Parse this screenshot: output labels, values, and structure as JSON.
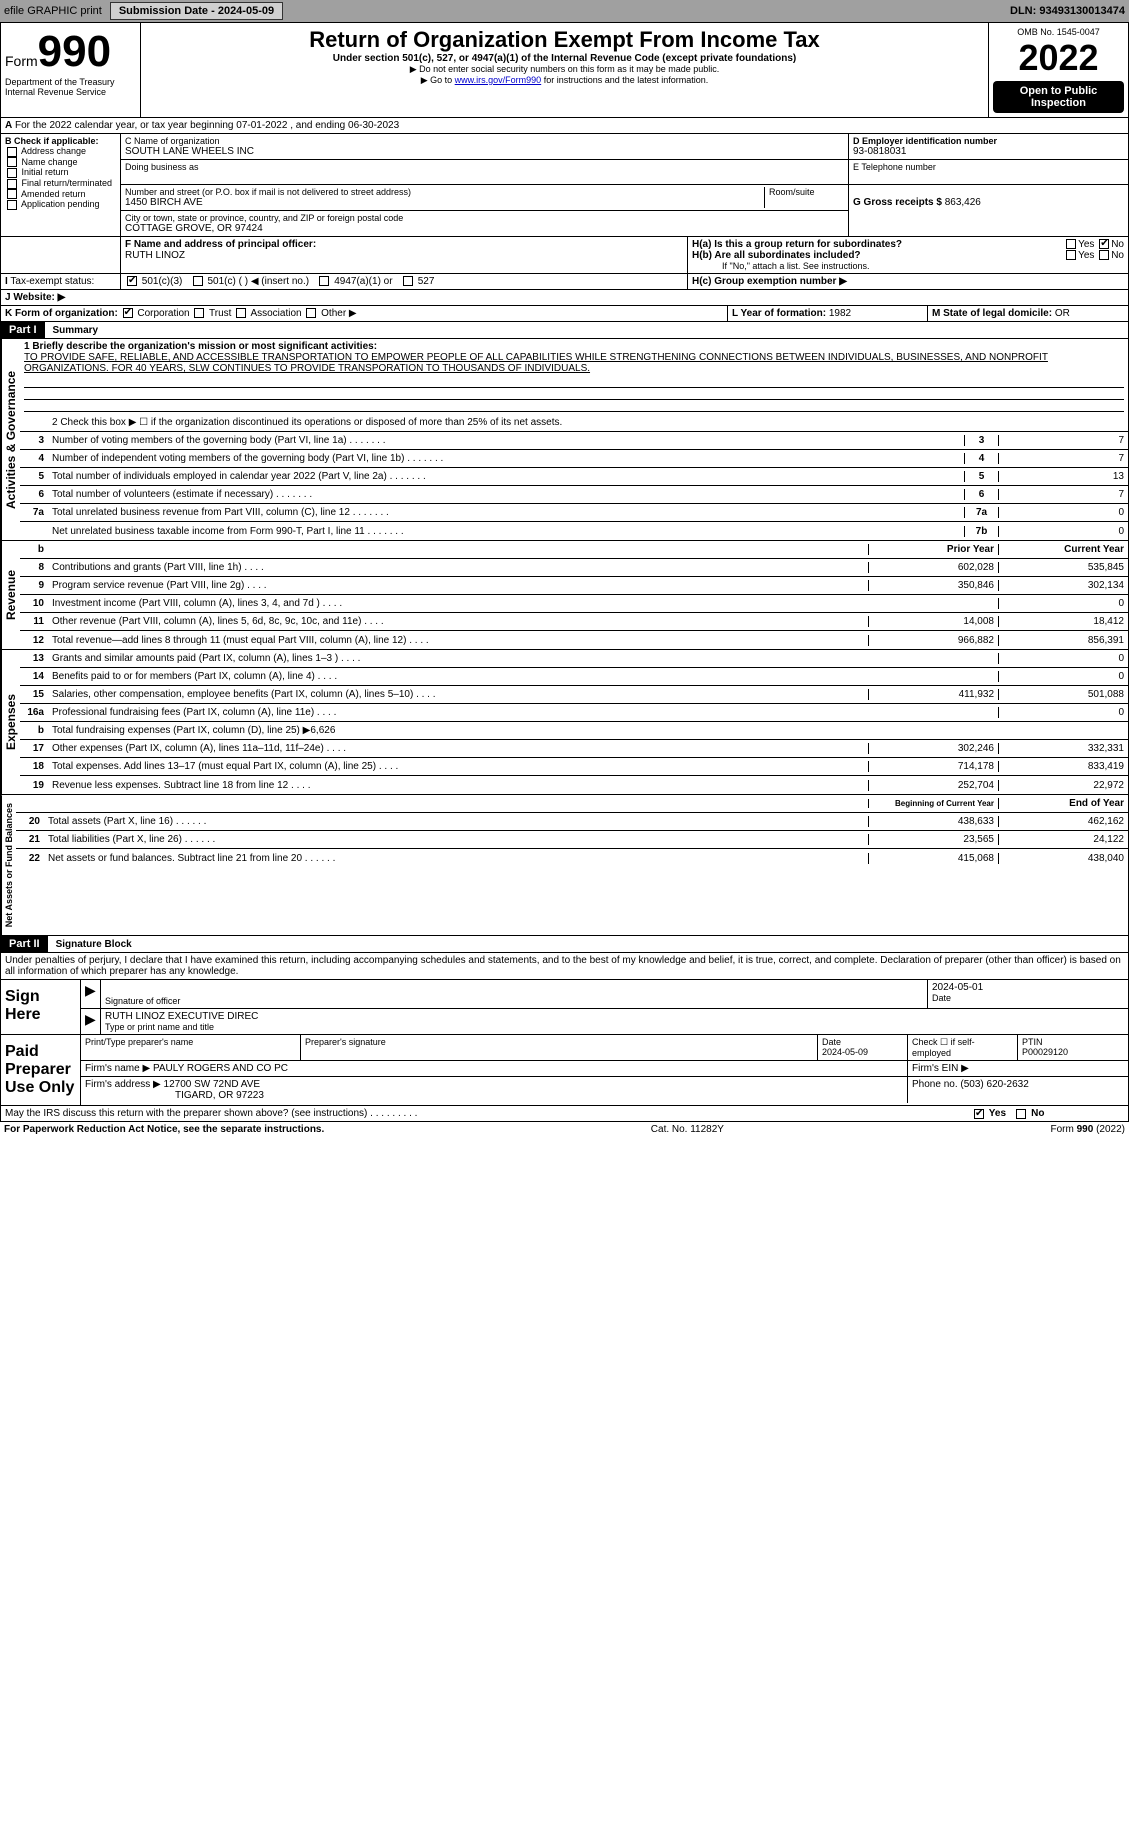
{
  "meta": {
    "efile": "efile GRAPHIC print",
    "submission": "Submission Date - 2024-05-09",
    "dln": "DLN: 93493130013474",
    "omb": "OMB No. 1545-0047",
    "form_prefix": "Form",
    "form_no": "990",
    "title": "Return of Organization Exempt From Income Tax",
    "subtitle": "Under section 501(c), 527, or 4947(a)(1) of the Internal Revenue Code (except private foundations)",
    "note1": "▶ Do not enter social security numbers on this form as it may be made public.",
    "note2_pre": "▶ Go to ",
    "note2_link": "www.irs.gov/Form990",
    "note2_post": " for instructions and the latest information.",
    "dept": "Department of the Treasury",
    "irs": "Internal Revenue Service",
    "year": "2022",
    "inspect": "Open to Public Inspection"
  },
  "lineA": "For the 2022 calendar year, or tax year beginning 07-01-2022    , and ending 06-30-2023",
  "boxB": {
    "hdr": "B Check if applicable:",
    "items": [
      "Address change",
      "Name change",
      "Initial return",
      "Final return/terminated",
      "Amended return",
      "Application pending"
    ]
  },
  "boxC": {
    "label": "C Name of organization",
    "name": "SOUTH LANE WHEELS INC",
    "dba": "Doing business as",
    "addr_label": "Number and street (or P.O. box if mail is not delivered to street address)",
    "room": "Room/suite",
    "addr": "1450 BIRCH AVE",
    "city_label": "City or town, state or province, country, and ZIP or foreign postal code",
    "city": "COTTAGE GROVE, OR  97424"
  },
  "boxD": {
    "label": "D Employer identification number",
    "val": "93-0818031"
  },
  "boxE": {
    "label": "E Telephone number",
    "val": ""
  },
  "boxG": {
    "label": "G Gross receipts $",
    "val": "863,426"
  },
  "boxF": {
    "label": "F  Name and address of principal officer:",
    "val": "RUTH LINOZ"
  },
  "boxH": {
    "a": "H(a)  Is this a group return for subordinates?",
    "b": "H(b)  Are all subordinates included?",
    "b_note": "If \"No,\" attach a list. See instructions.",
    "c": "H(c)  Group exemption number ▶",
    "yes": "Yes",
    "no": "No"
  },
  "taxExempt": {
    "label": "Tax-exempt status:",
    "c3": "501(c)(3)",
    "c": "501(c) (   ) ◀ (insert no.)",
    "a": "4947(a)(1) or",
    "s": "527"
  },
  "website": {
    "label": "J    Website: ▶",
    "val": ""
  },
  "formOrg": {
    "label": "K Form of organization:",
    "corp": "Corporation",
    "trust": "Trust",
    "assoc": "Association",
    "other": "Other ▶"
  },
  "yearForm": {
    "label": "L Year of formation:",
    "val": "1982"
  },
  "stateDom": {
    "label": "M State of legal domicile:",
    "val": "OR"
  },
  "part1": {
    "hdr": "Part I",
    "title": "Summary",
    "vlabels": [
      "Activities & Governance",
      "Revenue",
      "Expenses",
      "Net Assets or Fund Balances"
    ],
    "l1_label": "1  Briefly describe the organization's mission or most significant activities:",
    "l1_text": "TO PROVIDE SAFE, RELIABLE, AND ACCESSIBLE TRANSPORTATION TO EMPOWER PEOPLE OF ALL CAPABILITIES WHILE STRENGTHENING CONNECTIONS BETWEEN INDIVIDUALS, BUSINESSES, AND NONPROFIT ORGANIZATIONS. FOR 40 YEARS, SLW CONTINUES TO PROVIDE TRANSPORATION TO THOUSANDS OF INDIVIDUALS.",
    "l2": "2    Check this box ▶ ☐ if the organization discontinued its operations or disposed of more than 25% of its net assets.",
    "lines_gov": [
      {
        "n": "3",
        "t": "Number of voting members of the governing body (Part VI, line 1a)",
        "box": "3",
        "v": "7"
      },
      {
        "n": "4",
        "t": "Number of independent voting members of the governing body (Part VI, line 1b)",
        "box": "4",
        "v": "7"
      },
      {
        "n": "5",
        "t": "Total number of individuals employed in calendar year 2022 (Part V, line 2a)",
        "box": "5",
        "v": "13"
      },
      {
        "n": "6",
        "t": "Total number of volunteers (estimate if necessary)",
        "box": "6",
        "v": "7"
      },
      {
        "n": "7a",
        "t": "Total unrelated business revenue from Part VIII, column (C), line 12",
        "box": "7a",
        "v": "0"
      },
      {
        "n": "",
        "t": "Net unrelated business taxable income from Form 990-T, Part I, line 11",
        "box": "7b",
        "v": "0"
      }
    ],
    "colhdrs": {
      "b": "b",
      "py": "Prior Year",
      "cy": "Current Year"
    },
    "lines_rev": [
      {
        "n": "8",
        "t": "Contributions and grants (Part VIII, line 1h)",
        "py": "602,028",
        "cy": "535,845"
      },
      {
        "n": "9",
        "t": "Program service revenue (Part VIII, line 2g)",
        "py": "350,846",
        "cy": "302,134"
      },
      {
        "n": "10",
        "t": "Investment income (Part VIII, column (A), lines 3, 4, and 7d )",
        "py": "",
        "cy": "0"
      },
      {
        "n": "11",
        "t": "Other revenue (Part VIII, column (A), lines 5, 6d, 8c, 9c, 10c, and 11e)",
        "py": "14,008",
        "cy": "18,412"
      },
      {
        "n": "12",
        "t": "Total revenue—add lines 8 through 11 (must equal Part VIII, column (A), line 12)",
        "py": "966,882",
        "cy": "856,391"
      }
    ],
    "lines_exp": [
      {
        "n": "13",
        "t": "Grants and similar amounts paid (Part IX, column (A), lines 1–3 )",
        "py": "",
        "cy": "0"
      },
      {
        "n": "14",
        "t": "Benefits paid to or for members (Part IX, column (A), line 4)",
        "py": "",
        "cy": "0"
      },
      {
        "n": "15",
        "t": "Salaries, other compensation, employee benefits (Part IX, column (A), lines 5–10)",
        "py": "411,932",
        "cy": "501,088"
      },
      {
        "n": "16a",
        "t": "Professional fundraising fees (Part IX, column (A), line 11e)",
        "py": "",
        "cy": "0"
      },
      {
        "n": "b",
        "t": "Total fundraising expenses (Part IX, column (D), line 25) ▶6,626",
        "py": "",
        "cy": "",
        "gray": true
      },
      {
        "n": "17",
        "t": "Other expenses (Part IX, column (A), lines 11a–11d, 11f–24e)",
        "py": "302,246",
        "cy": "332,331"
      },
      {
        "n": "18",
        "t": "Total expenses. Add lines 13–17 (must equal Part IX, column (A), line 25)",
        "py": "714,178",
        "cy": "833,419"
      },
      {
        "n": "19",
        "t": "Revenue less expenses. Subtract line 18 from line 12",
        "py": "252,704",
        "cy": "22,972"
      }
    ],
    "colhdrs2": {
      "by": "Beginning of Current Year",
      "ey": "End of Year"
    },
    "lines_net": [
      {
        "n": "20",
        "t": "Total assets (Part X, line 16)",
        "py": "438,633",
        "cy": "462,162"
      },
      {
        "n": "21",
        "t": "Total liabilities (Part X, line 26)",
        "py": "23,565",
        "cy": "24,122"
      },
      {
        "n": "22",
        "t": "Net assets or fund balances. Subtract line 21 from line 20",
        "py": "415,068",
        "cy": "438,040"
      }
    ]
  },
  "part2": {
    "hdr": "Part II",
    "title": "Signature Block",
    "decl": "Under penalties of perjury, I declare that I have examined this return, including accompanying schedules and statements, and to the best of my knowledge and belief, it is true, correct, and complete. Declaration of preparer (other than officer) is based on all information of which preparer has any knowledge."
  },
  "sign": {
    "label": "Sign Here",
    "sig": "Signature of officer",
    "date": "2024-05-01",
    "date_label": "Date",
    "name": "RUTH LINOZ EXECUTIVE DIREC",
    "name_label": "Type or print name and title"
  },
  "paid": {
    "label": "Paid Preparer Use Only",
    "h1": "Print/Type preparer's name",
    "h2": "Preparer's signature",
    "h3": "Date",
    "h3v": "2024-05-09",
    "h4": "Check ☐ if self-employed",
    "h5": "PTIN",
    "h5v": "P00029120",
    "firm": "Firm's name    ▶",
    "firm_v": "PAULY ROGERS AND CO PC",
    "ein": "Firm's EIN ▶",
    "addr": "Firm's address ▶",
    "addr_v": "12700 SW 72ND AVE",
    "addr_v2": "TIGARD, OR  97223",
    "phone": "Phone no.",
    "phone_v": "(503) 620-2632"
  },
  "discuss": "May the IRS discuss this return with the preparer shown above? (see instructions)",
  "yes": "Yes",
  "no": "No",
  "footer": {
    "pra": "For Paperwork Reduction Act Notice, see the separate instructions.",
    "cat": "Cat. No. 11282Y",
    "form": "Form 990 (2022)"
  }
}
